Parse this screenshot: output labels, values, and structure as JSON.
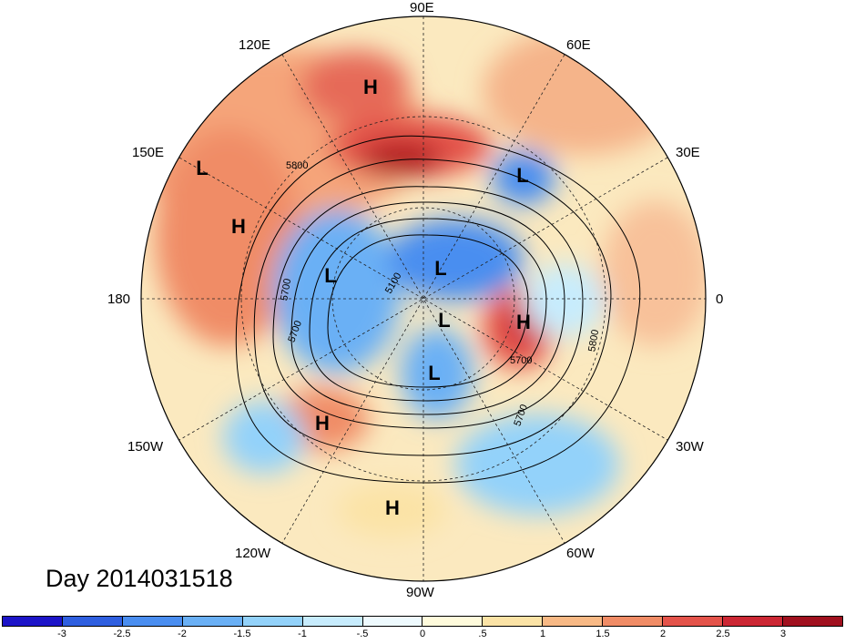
{
  "title": "Day 2014031518",
  "longitude_labels": {
    "e90": "90E",
    "e120": "120E",
    "e60": "60E",
    "e150": "150E",
    "e30": "30E",
    "w180": "180",
    "zero": "0",
    "w150": "150W",
    "w30": "30W",
    "w120": "120W",
    "w60": "60W",
    "w90": "90W"
  },
  "pressure_centers": [
    {
      "label": "H"
    },
    {
      "label": "L"
    },
    {
      "label": "H"
    },
    {
      "label": "L"
    },
    {
      "label": "L"
    },
    {
      "label": "L"
    },
    {
      "label": "H"
    },
    {
      "label": "L"
    },
    {
      "label": "L"
    },
    {
      "label": "H"
    },
    {
      "label": "H"
    }
  ],
  "contour_labels": {
    "c5800a": "5800",
    "c5700a": "5700",
    "c5100": "5100",
    "c5700b": "5700",
    "c5700c": "5700",
    "c5700d": "5700",
    "c5800b": "5800"
  },
  "colorbar": {
    "colors": [
      "#1c14c8",
      "#2f5fe0",
      "#4a8ef0",
      "#6ab0f5",
      "#93d2fa",
      "#c7ecfd",
      "#eefafe",
      "#fffbdc",
      "#fbe3a6",
      "#f8b985",
      "#f08c66",
      "#e4534a",
      "#cc2734",
      "#a0101e"
    ],
    "ticks": [
      "-3",
      "-2.5",
      "-2",
      "-1.5",
      "-1",
      "-.5",
      "0",
      ".5",
      "1",
      "1.5",
      "2",
      "2.5",
      "3"
    ]
  }
}
